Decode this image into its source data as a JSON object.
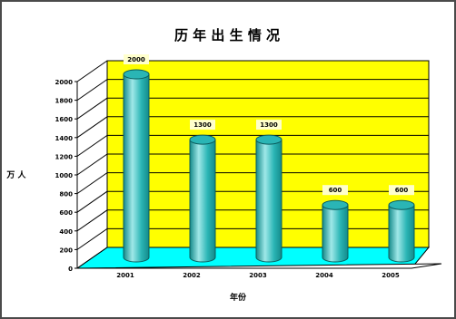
{
  "chart_data": {
    "type": "bar",
    "title": "历 年 出 生 情 况",
    "xlabel": "年份",
    "ylabel": "万 人",
    "categories": [
      "2001",
      "2002",
      "2003",
      "2004",
      "2005"
    ],
    "values": [
      2000,
      1300,
      1300,
      600,
      600
    ],
    "data_labels": [
      "2000",
      "1300",
      "1300",
      "600",
      "600"
    ],
    "yticks": [
      "0",
      "200",
      "400",
      "600",
      "800",
      "1000",
      "1200",
      "1400",
      "1600",
      "1800",
      "2000"
    ],
    "ylim": [
      0,
      2000
    ],
    "grid": true,
    "legend": "none",
    "colors": {
      "wall": "#ffff00",
      "floor": "#00ffff",
      "bar": "#2ab5b5",
      "bar_dark": "#148a8a",
      "bar_light": "#9fe8e8",
      "label_bg": "#ffffcc",
      "gridline": "#000000"
    }
  }
}
